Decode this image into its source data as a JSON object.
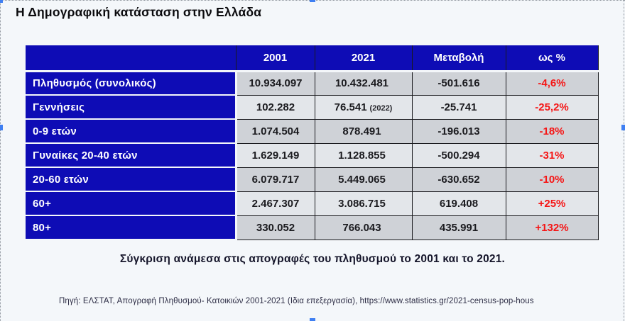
{
  "page": {
    "background": "#f4f7fa",
    "accent_blue": "#0e0cb5",
    "negative_red": "#f51616",
    "row_shade_dark": "#cfd2d7",
    "row_shade_light": "#e3e6ea",
    "selection_handle_color": "#3f7ff2"
  },
  "title": "Η Δημογραφική κατάσταση στην Ελλάδα",
  "table": {
    "headers": {
      "blank": "",
      "y2001": "2001",
      "y2021": "2021",
      "change": "Μεταβολή",
      "pct": "ως %"
    },
    "rows": [
      {
        "label": "Πληθυσμός (συνολικός)",
        "v2001": "10.934.097",
        "v2021": "10.432.481",
        "change": "-501.616",
        "pct": "-4,6%"
      },
      {
        "label": "Γεννήσεις",
        "v2001": "102.282",
        "v2021": "76.541",
        "note": "(2022)",
        "change": "-25.741",
        "pct": "-25,2%"
      },
      {
        "label": "0-9 ετών",
        "v2001": "1.074.504",
        "v2021": "878.491",
        "change": "-196.013",
        "pct": "-18%"
      },
      {
        "label": "Γυναίκες 20-40 ετών",
        "v2001": "1.629.149",
        "v2021": "1.128.855",
        "change": "-500.294",
        "pct": "-31%"
      },
      {
        "label": "20-60 ετών",
        "v2001": "6.079.717",
        "v2021": "5.449.065",
        "change": "-630.652",
        "pct": "-10%"
      },
      {
        "label": "60+",
        "v2001": "2.467.307",
        "v2021": "3.086.715",
        "change": "619.408",
        "pct": "+25%"
      },
      {
        "label": "80+",
        "v2001": "330.052",
        "v2021": "766.043",
        "change": "435.991",
        "pct": "+132%"
      }
    ]
  },
  "caption": "Σύγκριση ανάμεσα στις απογραφές του πληθυσμού το 2001 και το 2021.",
  "source": "Πηγή: ΕΛΣΤΑΤ, Απογραφή Πληθυσμού- Κατοικιών 2001-2021 (Ιδια επεξεργασία), https://www.statistics.gr/2021-census-pop-hous"
}
